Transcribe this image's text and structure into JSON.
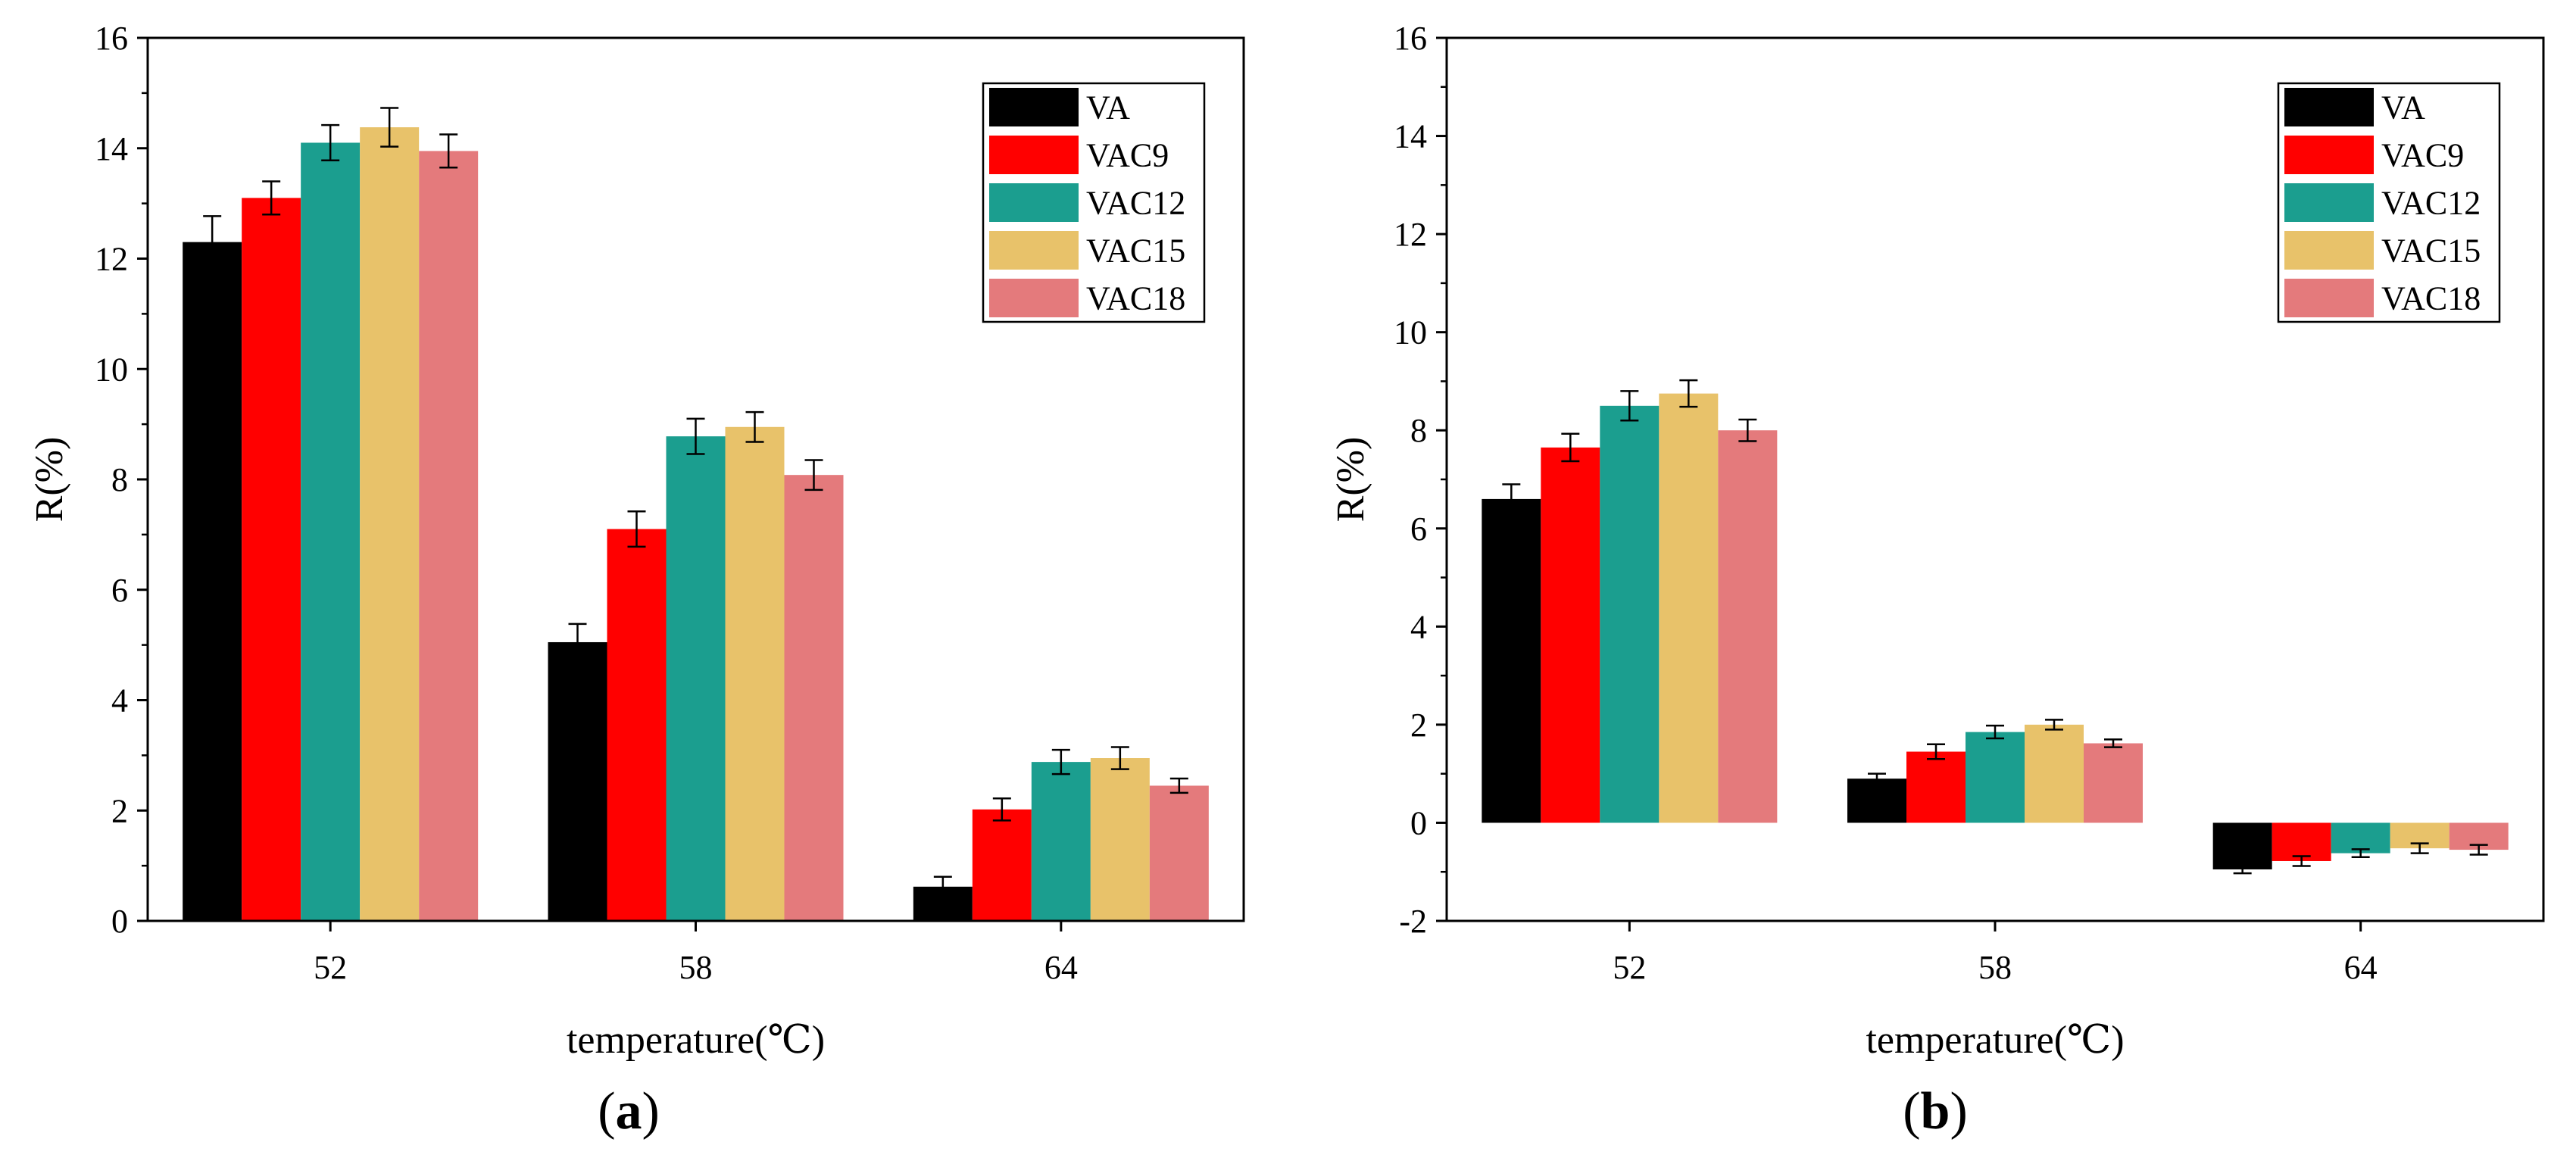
{
  "chart_data": [
    {
      "type": "bar",
      "panel_label": "a",
      "xlabel": "temperature(℃)",
      "ylabel": "R(%)",
      "categories": [
        "52",
        "58",
        "64"
      ],
      "ylim": [
        0,
        16
      ],
      "yticks": [
        0,
        2,
        4,
        6,
        8,
        10,
        12,
        14,
        16
      ],
      "legend_position": "top-right",
      "series": [
        {
          "name": "VA",
          "color": "#000000",
          "values": [
            12.3,
            5.05,
            0.62
          ],
          "errors": [
            0.47,
            0.33,
            0.18
          ]
        },
        {
          "name": "VAC9",
          "color": "#ff0000",
          "values": [
            13.1,
            7.1,
            2.02
          ],
          "errors": [
            0.3,
            0.32,
            0.2
          ]
        },
        {
          "name": "VAC12",
          "color": "#1b9e8f",
          "values": [
            14.1,
            8.78,
            2.88
          ],
          "errors": [
            0.32,
            0.32,
            0.22
          ]
        },
        {
          "name": "VAC15",
          "color": "#e8c26a",
          "values": [
            14.38,
            8.95,
            2.95
          ],
          "errors": [
            0.35,
            0.27,
            0.2
          ]
        },
        {
          "name": "VAC18",
          "color": "#e47a7c",
          "values": [
            13.95,
            8.08,
            2.45
          ],
          "errors": [
            0.3,
            0.27,
            0.13
          ]
        }
      ]
    },
    {
      "type": "bar",
      "panel_label": "b",
      "xlabel": "temperature(℃)",
      "ylabel": "R(%)",
      "categories": [
        "52",
        "58",
        "64"
      ],
      "ylim": [
        -2,
        16
      ],
      "yticks": [
        -2,
        0,
        2,
        4,
        6,
        8,
        10,
        12,
        14,
        16
      ],
      "legend_position": "top-right",
      "series": [
        {
          "name": "VA",
          "color": "#000000",
          "values": [
            6.6,
            0.9,
            -0.95
          ],
          "errors": [
            0.3,
            0.1,
            0.08
          ]
        },
        {
          "name": "VAC9",
          "color": "#ff0000",
          "values": [
            7.65,
            1.45,
            -0.78
          ],
          "errors": [
            0.28,
            0.15,
            0.1
          ]
        },
        {
          "name": "VAC12",
          "color": "#1b9e8f",
          "values": [
            8.5,
            1.85,
            -0.62
          ],
          "errors": [
            0.3,
            0.13,
            0.08
          ]
        },
        {
          "name": "VAC15",
          "color": "#e8c26a",
          "values": [
            8.75,
            2.0,
            -0.52
          ],
          "errors": [
            0.27,
            0.1,
            0.1
          ]
        },
        {
          "name": "VAC18",
          "color": "#e47a7c",
          "values": [
            8.0,
            1.62,
            -0.55
          ],
          "errors": [
            0.22,
            0.08,
            0.1
          ]
        }
      ]
    }
  ]
}
